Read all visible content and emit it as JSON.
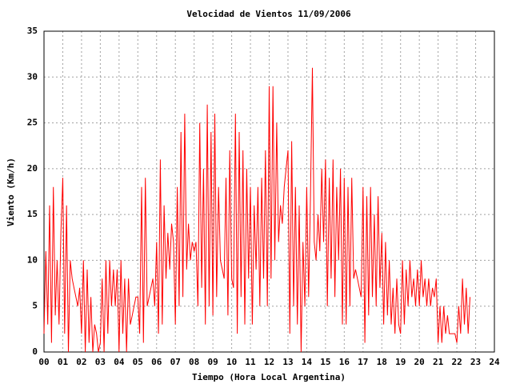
{
  "chart_data": {
    "type": "line",
    "title": "Velocidad de Vientos 11/09/2006",
    "x_label": "Tiempo (Hora Local Argentina)",
    "y_label": "Viento (Km/h)",
    "color": "#ff0000",
    "grid": true,
    "xlim": [
      0,
      24
    ],
    "ylim": [
      0,
      35
    ],
    "xticks": [
      {
        "value": 0,
        "label": "00"
      },
      {
        "value": 1,
        "label": "01"
      },
      {
        "value": 2,
        "label": "02"
      },
      {
        "value": 3,
        "label": "03"
      },
      {
        "value": 4,
        "label": "04"
      },
      {
        "value": 5,
        "label": "05"
      },
      {
        "value": 6,
        "label": "06"
      },
      {
        "value": 7,
        "label": "07"
      },
      {
        "value": 8,
        "label": "08"
      },
      {
        "value": 9,
        "label": "09"
      },
      10,
      11,
      12,
      13,
      14,
      15,
      16,
      17,
      18,
      19,
      20,
      21,
      22,
      23,
      24
    ],
    "yticks": [
      0,
      5,
      10,
      15,
      20,
      25,
      30,
      35
    ],
    "x": [
      0,
      0.1,
      0.2,
      0.3,
      0.4,
      0.5,
      0.6,
      0.7,
      0.8,
      0.9,
      1,
      1.1,
      1.2,
      1.3,
      1.4,
      1.5,
      1.6,
      1.7,
      1.8,
      1.9,
      2,
      2.1,
      2.2,
      2.3,
      2.4,
      2.5,
      2.6,
      2.7,
      2.8,
      2.9,
      3,
      3.1,
      3.2,
      3.3,
      3.4,
      3.5,
      3.6,
      3.7,
      3.8,
      3.9,
      4,
      4.1,
      4.2,
      4.3,
      4.4,
      4.5,
      4.6,
      4.7,
      4.8,
      4.9,
      5,
      5.1,
      5.2,
      5.3,
      5.4,
      5.5,
      5.6,
      5.7,
      5.8,
      5.9,
      6,
      6.1,
      6.2,
      6.3,
      6.4,
      6.5,
      6.6,
      6.7,
      6.8,
      6.9,
      7,
      7.1,
      7.2,
      7.3,
      7.4,
      7.5,
      7.6,
      7.7,
      7.8,
      7.9,
      8,
      8.1,
      8.2,
      8.3,
      8.4,
      8.5,
      8.6,
      8.7,
      8.8,
      8.9,
      9,
      9.1,
      9.2,
      9.3,
      9.4,
      9.5,
      9.6,
      9.7,
      9.8,
      9.9,
      10,
      10.1,
      10.2,
      10.3,
      10.4,
      10.5,
      10.6,
      10.7,
      10.8,
      10.9,
      11,
      11.1,
      11.2,
      11.3,
      11.4,
      11.5,
      11.6,
      11.7,
      11.8,
      11.9,
      12,
      12.1,
      12.2,
      12.3,
      12.4,
      12.5,
      12.6,
      12.7,
      12.8,
      12.9,
      13,
      13.1,
      13.2,
      13.3,
      13.4,
      13.5,
      13.6,
      13.7,
      13.8,
      13.9,
      14,
      14.1,
      14.2,
      14.3,
      14.4,
      14.5,
      14.6,
      14.7,
      14.8,
      14.9,
      15,
      15.1,
      15.2,
      15.3,
      15.4,
      15.5,
      15.6,
      15.7,
      15.8,
      15.9,
      16,
      16.1,
      16.2,
      16.3,
      16.4,
      16.5,
      16.6,
      16.7,
      16.8,
      16.9,
      17,
      17.1,
      17.2,
      17.3,
      17.4,
      17.5,
      17.6,
      17.7,
      17.8,
      17.9,
      18,
      18.1,
      18.2,
      18.3,
      18.4,
      18.5,
      18.6,
      18.7,
      18.8,
      18.9,
      19,
      19.1,
      19.2,
      19.3,
      19.4,
      19.5,
      19.6,
      19.7,
      19.8,
      19.9,
      20,
      20.1,
      20.2,
      20.3,
      20.4,
      20.5,
      20.6,
      20.7,
      20.8,
      20.9,
      21,
      21.1,
      21.2,
      21.3,
      21.4,
      21.5,
      21.6,
      21.7,
      21.8,
      21.9,
      22,
      22.1,
      22.2,
      22.3,
      22.4,
      22.5,
      22.6,
      22.7
    ],
    "values": [
      2,
      11,
      3,
      16,
      1,
      18,
      4,
      10,
      3,
      13,
      19,
      2,
      16,
      0,
      10,
      8,
      7,
      6,
      5,
      7,
      2,
      10,
      0,
      9,
      1,
      6,
      0,
      3,
      2,
      0,
      1,
      8,
      0,
      10,
      2,
      10,
      5,
      9,
      5,
      9,
      0,
      10,
      2,
      8,
      0,
      8,
      3,
      4,
      5,
      6,
      6,
      2,
      18,
      1,
      19,
      5,
      6,
      7,
      8,
      5,
      12,
      2,
      21,
      3,
      16,
      8,
      13,
      9,
      14,
      12,
      3,
      18,
      5,
      24,
      6,
      26,
      9,
      14,
      10,
      12,
      11,
      12,
      5,
      25,
      7,
      20,
      3,
      27,
      5,
      24,
      4,
      26,
      6,
      18,
      10,
      9,
      8,
      19,
      4,
      22,
      8,
      7,
      26,
      2,
      24,
      6,
      22,
      3,
      20,
      8,
      18,
      3,
      16,
      9,
      18,
      5,
      19,
      8,
      22,
      5,
      29,
      8,
      29,
      10,
      25,
      12,
      16,
      14,
      18,
      20,
      22,
      2,
      23,
      5,
      18,
      3,
      16,
      0,
      12,
      5,
      18,
      6,
      17,
      31,
      12,
      10,
      15,
      11,
      20,
      12,
      21,
      5,
      19,
      8,
      21,
      6,
      18,
      10,
      20,
      3,
      19,
      3,
      18,
      5,
      19,
      8,
      9,
      8,
      7,
      6,
      18,
      1,
      17,
      4,
      18,
      6,
      15,
      5,
      17,
      7,
      13,
      3,
      12,
      4,
      10,
      3,
      7,
      2,
      8,
      3,
      2,
      10,
      3,
      9,
      5,
      10,
      6,
      8,
      5,
      9,
      5,
      10,
      6,
      8,
      5,
      8,
      5,
      7,
      6,
      8,
      1,
      5,
      1,
      5,
      2,
      4,
      2,
      2,
      2,
      2,
      1,
      5,
      2,
      8,
      3,
      7,
      2,
      6
    ]
  }
}
